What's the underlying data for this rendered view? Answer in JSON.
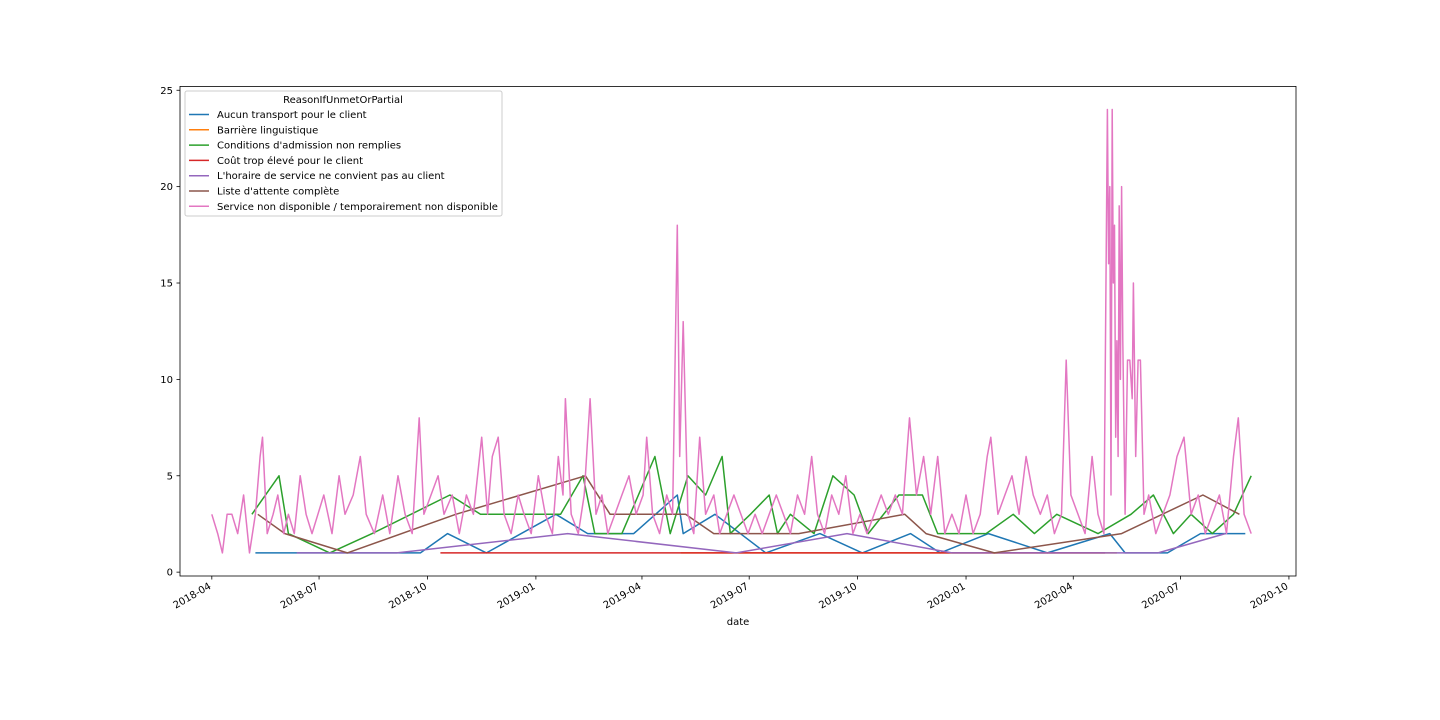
{
  "chart_data": {
    "type": "line",
    "xlabel": "date",
    "ylabel": "",
    "ylim": [
      -0.2,
      25.2
    ],
    "xlim": [
      "2018-03-05",
      "2020-10-07"
    ],
    "grid": false,
    "legend": {
      "title": "ReasonIfUnmetOrPartial",
      "placement": "top-left"
    },
    "y_ticks": [
      0,
      5,
      10,
      15,
      20,
      25
    ],
    "x_ticks": [
      "2018-04",
      "2018-07",
      "2018-10",
      "2019-01",
      "2019-04",
      "2019-07",
      "2019-10",
      "2020-01",
      "2020-04",
      "2020-07",
      "2020-10"
    ],
    "series": [
      {
        "name": "Aucun transport pour le client",
        "color": "#1f77b4",
        "points": [
          [
            "2018-05-08",
            1
          ],
          [
            "2018-05-20",
            1
          ],
          [
            "2018-06-10",
            1
          ],
          [
            "2018-08-22",
            1
          ],
          [
            "2018-09-25",
            1
          ],
          [
            "2018-10-18",
            2
          ],
          [
            "2018-11-20",
            1
          ],
          [
            "2019-01-18",
            3
          ],
          [
            "2019-02-14",
            2
          ],
          [
            "2019-03-25",
            2
          ],
          [
            "2019-05-01",
            4
          ],
          [
            "2019-05-06",
            2
          ],
          [
            "2019-06-02",
            3
          ],
          [
            "2019-07-15",
            1
          ],
          [
            "2019-08-30",
            2
          ],
          [
            "2019-10-05",
            1
          ],
          [
            "2019-11-15",
            2
          ],
          [
            "2019-12-10",
            1
          ],
          [
            "2020-01-20",
            2
          ],
          [
            "2020-03-10",
            1
          ],
          [
            "2020-05-02",
            2
          ],
          [
            "2020-05-15",
            1
          ],
          [
            "2020-06-20",
            1
          ],
          [
            "2020-07-18",
            2
          ],
          [
            "2020-08-25",
            2
          ]
        ]
      },
      {
        "name": "Barrière linguistique",
        "color": "#ff7f0e",
        "points": [
          [
            "2019-05-04",
            1
          ],
          [
            "2019-06-05",
            1
          ],
          [
            "2020-05-08",
            1
          ]
        ]
      },
      {
        "name": "Conditions d'admission non remplies",
        "color": "#2ca02c",
        "points": [
          [
            "2018-05-05",
            3
          ],
          [
            "2018-05-28",
            5
          ],
          [
            "2018-06-05",
            2
          ],
          [
            "2018-07-10",
            1
          ],
          [
            "2018-08-15",
            2
          ],
          [
            "2018-10-20",
            4
          ],
          [
            "2018-11-15",
            3
          ],
          [
            "2019-01-22",
            3
          ],
          [
            "2019-02-10",
            5
          ],
          [
            "2019-02-20",
            2
          ],
          [
            "2019-03-15",
            2
          ],
          [
            "2019-04-12",
            6
          ],
          [
            "2019-04-25",
            2
          ],
          [
            "2019-05-10",
            5
          ],
          [
            "2019-05-25",
            4
          ],
          [
            "2019-06-08",
            6
          ],
          [
            "2019-06-15",
            2
          ],
          [
            "2019-07-02",
            3
          ],
          [
            "2019-07-18",
            4
          ],
          [
            "2019-07-25",
            2
          ],
          [
            "2019-08-05",
            3
          ],
          [
            "2019-08-25",
            2
          ],
          [
            "2019-09-10",
            5
          ],
          [
            "2019-09-28",
            4
          ],
          [
            "2019-10-10",
            2
          ],
          [
            "2019-11-05",
            4
          ],
          [
            "2019-11-25",
            4
          ],
          [
            "2019-12-08",
            2
          ],
          [
            "2020-01-18",
            2
          ],
          [
            "2020-02-10",
            3
          ],
          [
            "2020-02-28",
            2
          ],
          [
            "2020-03-18",
            3
          ],
          [
            "2020-04-22",
            2
          ],
          [
            "2020-05-20",
            3
          ],
          [
            "2020-06-08",
            4
          ],
          [
            "2020-06-25",
            2
          ],
          [
            "2020-07-10",
            3
          ],
          [
            "2020-07-28",
            2
          ],
          [
            "2020-08-15",
            3
          ],
          [
            "2020-08-30",
            5
          ]
        ]
      },
      {
        "name": "Coût trop élevé pour le client",
        "color": "#d62728",
        "points": [
          [
            "2018-10-12",
            1
          ],
          [
            "2019-01-15",
            1
          ],
          [
            "2019-07-20",
            1
          ],
          [
            "2020-04-28",
            1
          ]
        ]
      },
      {
        "name": "L'horaire de service ne convient pas au client",
        "color": "#9467bd",
        "points": [
          [
            "2018-06-12",
            1
          ],
          [
            "2018-09-05",
            1
          ],
          [
            "2019-01-28",
            2
          ],
          [
            "2019-06-20",
            1
          ],
          [
            "2019-09-22",
            2
          ],
          [
            "2019-12-20",
            1
          ],
          [
            "2020-03-25",
            1
          ],
          [
            "2020-06-12",
            1
          ],
          [
            "2020-08-08",
            2
          ]
        ]
      },
      {
        "name": "Liste d'attente complète",
        "color": "#8c564b",
        "points": [
          [
            "2018-05-10",
            3
          ],
          [
            "2018-06-02",
            2
          ],
          [
            "2018-07-25",
            1
          ],
          [
            "2018-10-25",
            3
          ],
          [
            "2019-02-12",
            5
          ],
          [
            "2019-03-05",
            3
          ],
          [
            "2019-05-08",
            3
          ],
          [
            "2019-06-01",
            2
          ],
          [
            "2019-08-12",
            2
          ],
          [
            "2019-11-10",
            3
          ],
          [
            "2019-11-28",
            2
          ],
          [
            "2020-01-25",
            1
          ],
          [
            "2020-05-12",
            2
          ],
          [
            "2020-07-20",
            4
          ],
          [
            "2020-08-20",
            3
          ]
        ]
      },
      {
        "name": "Service non disponible / temporairement non disponible",
        "color": "#e377c2",
        "points": [
          [
            "2018-04-01",
            3
          ],
          [
            "2018-04-06",
            2
          ],
          [
            "2018-04-10",
            1
          ],
          [
            "2018-04-14",
            3
          ],
          [
            "2018-04-18",
            3
          ],
          [
            "2018-04-23",
            2
          ],
          [
            "2018-04-28",
            4
          ],
          [
            "2018-05-03",
            1
          ],
          [
            "2018-05-08",
            3
          ],
          [
            "2018-05-12",
            6
          ],
          [
            "2018-05-14",
            7
          ],
          [
            "2018-05-18",
            2
          ],
          [
            "2018-05-23",
            3
          ],
          [
            "2018-05-27",
            4
          ],
          [
            "2018-06-01",
            2
          ],
          [
            "2018-06-05",
            3
          ],
          [
            "2018-06-10",
            2
          ],
          [
            "2018-06-15",
            5
          ],
          [
            "2018-06-20",
            3
          ],
          [
            "2018-06-25",
            2
          ],
          [
            "2018-06-30",
            3
          ],
          [
            "2018-07-05",
            4
          ],
          [
            "2018-07-12",
            2
          ],
          [
            "2018-07-18",
            5
          ],
          [
            "2018-07-23",
            3
          ],
          [
            "2018-07-30",
            4
          ],
          [
            "2018-08-05",
            6
          ],
          [
            "2018-08-10",
            3
          ],
          [
            "2018-08-17",
            2
          ],
          [
            "2018-08-24",
            4
          ],
          [
            "2018-08-30",
            2
          ],
          [
            "2018-09-06",
            5
          ],
          [
            "2018-09-12",
            3
          ],
          [
            "2018-09-18",
            2
          ],
          [
            "2018-09-24",
            8
          ],
          [
            "2018-09-28",
            3
          ],
          [
            "2018-10-04",
            4
          ],
          [
            "2018-10-10",
            5
          ],
          [
            "2018-10-15",
            3
          ],
          [
            "2018-10-22",
            4
          ],
          [
            "2018-10-28",
            2
          ],
          [
            "2018-11-03",
            4
          ],
          [
            "2018-11-09",
            3
          ],
          [
            "2018-11-16",
            7
          ],
          [
            "2018-11-21",
            3
          ],
          [
            "2018-11-25",
            6
          ],
          [
            "2018-11-30",
            7
          ],
          [
            "2018-12-05",
            3
          ],
          [
            "2018-12-11",
            2
          ],
          [
            "2018-12-17",
            4
          ],
          [
            "2018-12-22",
            3
          ],
          [
            "2018-12-28",
            2
          ],
          [
            "2019-01-03",
            5
          ],
          [
            "2019-01-09",
            3
          ],
          [
            "2019-01-15",
            2
          ],
          [
            "2019-01-20",
            6
          ],
          [
            "2019-01-24",
            4
          ],
          [
            "2019-01-26",
            9
          ],
          [
            "2019-01-31",
            3
          ],
          [
            "2019-02-06",
            2
          ],
          [
            "2019-02-11",
            4
          ],
          [
            "2019-02-16",
            9
          ],
          [
            "2019-02-21",
            3
          ],
          [
            "2019-02-26",
            4
          ],
          [
            "2019-03-03",
            2
          ],
          [
            "2019-03-09",
            3
          ],
          [
            "2019-03-15",
            4
          ],
          [
            "2019-03-21",
            5
          ],
          [
            "2019-03-27",
            3
          ],
          [
            "2019-04-02",
            4
          ],
          [
            "2019-04-05",
            7
          ],
          [
            "2019-04-10",
            3
          ],
          [
            "2019-04-16",
            2
          ],
          [
            "2019-04-22",
            4
          ],
          [
            "2019-04-27",
            3
          ],
          [
            "2019-05-01",
            18
          ],
          [
            "2019-05-03",
            6
          ],
          [
            "2019-05-06",
            13
          ],
          [
            "2019-05-10",
            3
          ],
          [
            "2019-05-15",
            2
          ],
          [
            "2019-05-20",
            7
          ],
          [
            "2019-05-25",
            3
          ],
          [
            "2019-06-01",
            4
          ],
          [
            "2019-06-06",
            2
          ],
          [
            "2019-06-12",
            3
          ],
          [
            "2019-06-18",
            4
          ],
          [
            "2019-06-24",
            3
          ],
          [
            "2019-06-30",
            2
          ],
          [
            "2019-07-06",
            3
          ],
          [
            "2019-07-12",
            2
          ],
          [
            "2019-07-18",
            3
          ],
          [
            "2019-07-24",
            4
          ],
          [
            "2019-07-30",
            3
          ],
          [
            "2019-08-05",
            2
          ],
          [
            "2019-08-11",
            4
          ],
          [
            "2019-08-17",
            3
          ],
          [
            "2019-08-23",
            6
          ],
          [
            "2019-08-28",
            3
          ],
          [
            "2019-09-03",
            2
          ],
          [
            "2019-09-09",
            4
          ],
          [
            "2019-09-15",
            3
          ],
          [
            "2019-09-21",
            5
          ],
          [
            "2019-09-27",
            2
          ],
          [
            "2019-10-03",
            3
          ],
          [
            "2019-10-09",
            2
          ],
          [
            "2019-10-15",
            3
          ],
          [
            "2019-10-21",
            4
          ],
          [
            "2019-10-27",
            3
          ],
          [
            "2019-11-02",
            4
          ],
          [
            "2019-11-08",
            3
          ],
          [
            "2019-11-14",
            8
          ],
          [
            "2019-11-20",
            4
          ],
          [
            "2019-11-26",
            6
          ],
          [
            "2019-12-02",
            3
          ],
          [
            "2019-12-08",
            6
          ],
          [
            "2019-12-14",
            2
          ],
          [
            "2019-12-20",
            3
          ],
          [
            "2019-12-26",
            2
          ],
          [
            "2020-01-01",
            4
          ],
          [
            "2020-01-07",
            2
          ],
          [
            "2020-01-13",
            3
          ],
          [
            "2020-01-19",
            6
          ],
          [
            "2020-01-22",
            7
          ],
          [
            "2020-01-28",
            3
          ],
          [
            "2020-02-03",
            4
          ],
          [
            "2020-02-09",
            5
          ],
          [
            "2020-02-15",
            3
          ],
          [
            "2020-02-21",
            6
          ],
          [
            "2020-02-27",
            4
          ],
          [
            "2020-03-04",
            3
          ],
          [
            "2020-03-10",
            4
          ],
          [
            "2020-03-16",
            2
          ],
          [
            "2020-03-22",
            3
          ],
          [
            "2020-03-26",
            11
          ],
          [
            "2020-03-30",
            4
          ],
          [
            "2020-04-05",
            3
          ],
          [
            "2020-04-11",
            2
          ],
          [
            "2020-04-17",
            6
          ],
          [
            "2020-04-22",
            3
          ],
          [
            "2020-04-27",
            2
          ],
          [
            "2020-04-30",
            24
          ],
          [
            "2020-05-01",
            16
          ],
          [
            "2020-05-02",
            20
          ],
          [
            "2020-05-03",
            4
          ],
          [
            "2020-05-04",
            24
          ],
          [
            "2020-05-05",
            15
          ],
          [
            "2020-05-06",
            18
          ],
          [
            "2020-05-07",
            7
          ],
          [
            "2020-05-08",
            12
          ],
          [
            "2020-05-09",
            6
          ],
          [
            "2020-05-10",
            19
          ],
          [
            "2020-05-11",
            10
          ],
          [
            "2020-05-12",
            20
          ],
          [
            "2020-05-13",
            12
          ],
          [
            "2020-05-15",
            3
          ],
          [
            "2020-05-17",
            11
          ],
          [
            "2020-05-19",
            11
          ],
          [
            "2020-05-21",
            9
          ],
          [
            "2020-05-22",
            15
          ],
          [
            "2020-05-24",
            6
          ],
          [
            "2020-05-26",
            11
          ],
          [
            "2020-05-28",
            11
          ],
          [
            "2020-05-31",
            3
          ],
          [
            "2020-06-04",
            4
          ],
          [
            "2020-06-10",
            2
          ],
          [
            "2020-06-16",
            3
          ],
          [
            "2020-06-22",
            4
          ],
          [
            "2020-06-28",
            6
          ],
          [
            "2020-07-04",
            7
          ],
          [
            "2020-07-10",
            3
          ],
          [
            "2020-07-16",
            4
          ],
          [
            "2020-07-22",
            2
          ],
          [
            "2020-07-28",
            3
          ],
          [
            "2020-08-03",
            4
          ],
          [
            "2020-08-09",
            2
          ],
          [
            "2020-08-15",
            6
          ],
          [
            "2020-08-19",
            8
          ],
          [
            "2020-08-24",
            3
          ],
          [
            "2020-08-30",
            2
          ]
        ]
      }
    ]
  }
}
